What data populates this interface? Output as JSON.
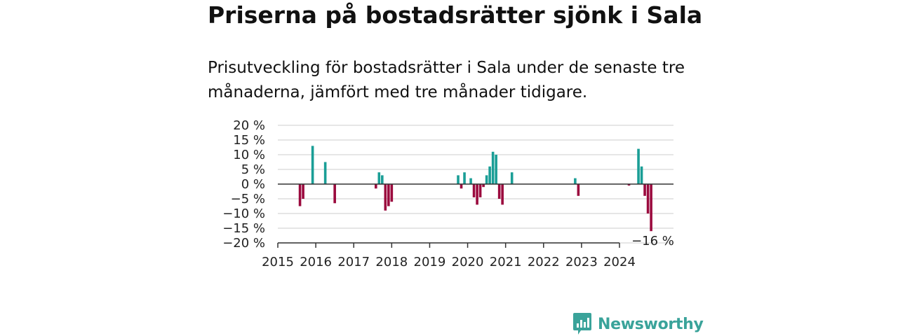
{
  "header": {
    "title": "Priserna på bostadsrätter sjönk i Sala",
    "subtitle": "Prisutveckling för bostadsrätter i Sala under de senaste tre månaderna, jämfört med tre månader tidigare."
  },
  "chart_data": {
    "type": "bar",
    "title": "Priserna på bostadsrätter sjönk i Sala",
    "subtitle": "Prisutveckling för bostadsrätter i Sala under de senaste tre månaderna, jämfört med tre månader tidigare.",
    "xlabel": "",
    "ylabel": "",
    "ylim": [
      -20,
      20
    ],
    "yticks": [
      20,
      15,
      10,
      5,
      0,
      -5,
      -10,
      -15,
      -20
    ],
    "ytick_labels": [
      "20 %",
      "15 %",
      "10 %",
      "5 %",
      "0 %",
      "−5 %",
      "−10 %",
      "−15 %",
      "−20 %"
    ],
    "xticks": [
      "2015",
      "2016",
      "2017",
      "2018",
      "2019",
      "2020",
      "2021",
      "2022",
      "2023",
      "2024"
    ],
    "grid": true,
    "colors": {
      "positive": "#1a9e96",
      "negative": "#9b0a3e",
      "grid": "#dddddd",
      "zero_line": "#333333"
    },
    "bar_label": {
      "text": "−16 %",
      "value": -16
    },
    "series": [
      {
        "x": [
          "2015-08",
          "2015-09",
          "2015-12",
          "2016-04",
          "2016-07",
          "2017-08",
          "2017-09",
          "2017-10",
          "2017-11",
          "2017-12",
          "2018-01",
          "2019-10",
          "2019-11",
          "2019-12",
          "2020-02",
          "2020-03",
          "2020-04",
          "2020-05",
          "2020-06",
          "2020-07",
          "2020-08",
          "2020-09",
          "2020-10",
          "2020-11",
          "2020-12",
          "2021-03",
          "2022-11",
          "2022-12",
          "2024-04",
          "2024-07",
          "2024-08",
          "2024-09",
          "2024-10",
          "2024-11"
        ],
        "values": [
          -7.5,
          -5,
          13,
          7.5,
          -6.5,
          -1.5,
          4,
          3,
          -9,
          -7.5,
          -6,
          3,
          -1.5,
          4,
          2,
          -4.5,
          -7,
          -4.5,
          -1,
          3,
          6,
          11,
          10,
          -5,
          -7,
          4,
          2,
          -4,
          -0.5,
          12,
          6,
          -4,
          -10,
          -16
        ]
      }
    ]
  },
  "branding": {
    "logo_text": "Newsworthy"
  }
}
